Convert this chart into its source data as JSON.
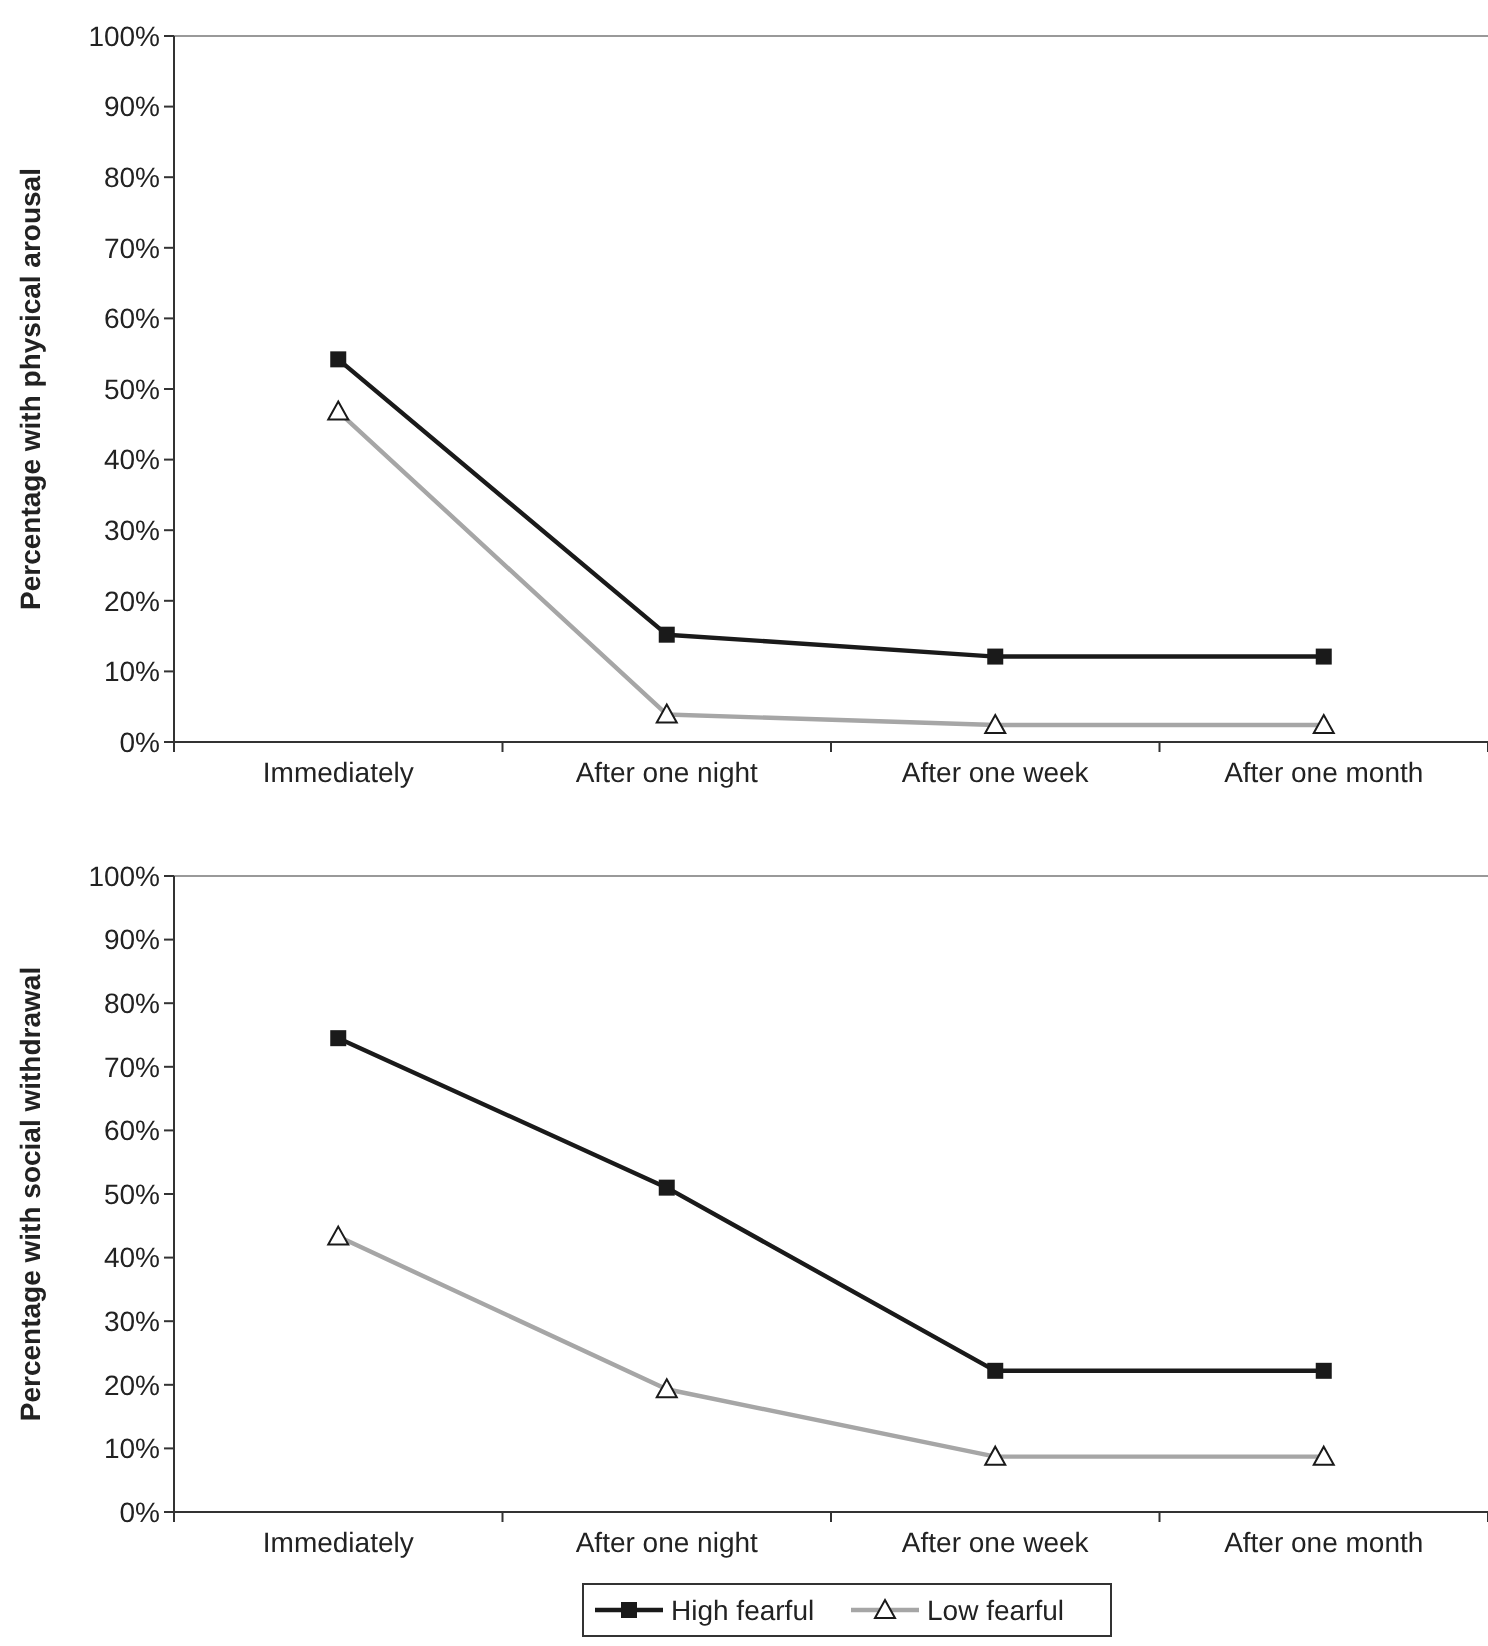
{
  "chart_data": [
    {
      "type": "line",
      "ylabel": "Percentage with physical arousal",
      "categories": [
        "Immediately",
        "After one night",
        "After one week",
        "After one month"
      ],
      "ylim": [
        0,
        100
      ],
      "yticks": [
        {
          "value": 0,
          "label": "0%"
        },
        {
          "value": 10,
          "label": "10%"
        },
        {
          "value": 20,
          "label": "20%"
        },
        {
          "value": 30,
          "label": "30%"
        },
        {
          "value": 40,
          "label": "40%"
        },
        {
          "value": 50,
          "label": "50%"
        },
        {
          "value": 60,
          "label": "60%"
        },
        {
          "value": 70,
          "label": "70%"
        },
        {
          "value": 80,
          "label": "80%"
        },
        {
          "value": 90,
          "label": "90%"
        },
        {
          "value": 100,
          "label": "100%"
        }
      ],
      "grid": false,
      "series": [
        {
          "color": "#1a1a1a",
          "marker": "square",
          "values": [
            54.2,
            15.2,
            12.1,
            12.1
          ]
        },
        {
          "color": "#a6a6a6",
          "marker": "triangle",
          "values": [
            46.8,
            3.9,
            2.4,
            2.4
          ]
        }
      ]
    },
    {
      "type": "line",
      "ylabel": "Percentage with social withdrawal",
      "categories": [
        "Immediately",
        "After one night",
        "After one week",
        "After one month"
      ],
      "ylim": [
        0,
        100
      ],
      "yticks": [
        {
          "value": 0,
          "label": "0%"
        },
        {
          "value": 10,
          "label": "10%"
        },
        {
          "value": 20,
          "label": "20%"
        },
        {
          "value": 30,
          "label": "30%"
        },
        {
          "value": 40,
          "label": "40%"
        },
        {
          "value": 50,
          "label": "50%"
        },
        {
          "value": 60,
          "label": "60%"
        },
        {
          "value": 70,
          "label": "70%"
        },
        {
          "value": 80,
          "label": "80%"
        },
        {
          "value": 90,
          "label": "90%"
        },
        {
          "value": 100,
          "label": "100%"
        }
      ],
      "grid": false,
      "legend": "bottom",
      "series": [
        {
          "name": "High fearful",
          "color": "#1a1a1a",
          "marker": "square",
          "values": [
            74.5,
            51.0,
            22.2,
            22.2
          ]
        },
        {
          "name": "Low fearful",
          "color": "#a6a6a6",
          "marker": "triangle",
          "values": [
            43.3,
            19.3,
            8.7,
            8.7
          ]
        }
      ]
    }
  ]
}
